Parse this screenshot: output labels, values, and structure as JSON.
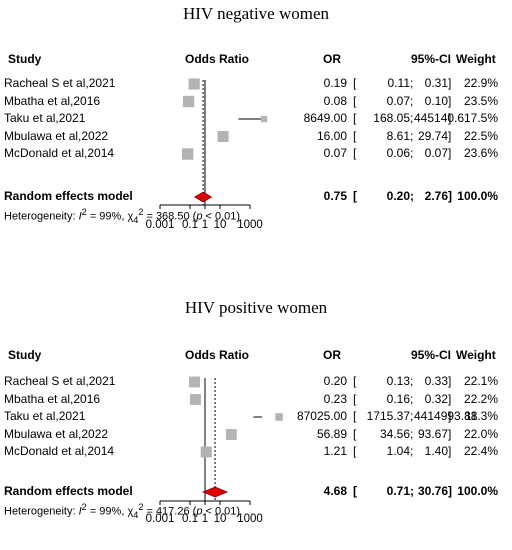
{
  "chart_data": [
    {
      "type": "forest",
      "title": "HIV negative women",
      "headers": {
        "study": "Study",
        "plot": "Odds Ratio",
        "or": "OR",
        "ci": "95%-CI",
        "weight": "Weight"
      },
      "studies": [
        {
          "name": "Racheal S et al,2021",
          "or_text": "0.19",
          "ci_low_text": "0.11",
          "ci_high_text": "0.31",
          "weight_text": "22.9%",
          "or": 0.19,
          "ci": [
            0.11,
            0.31
          ],
          "weight": 22.9
        },
        {
          "name": "Mbatha et al,2016",
          "or_text": "0.08",
          "ci_low_text": "0.07",
          "ci_high_text": "0.10",
          "weight_text": "23.5%",
          "or": 0.08,
          "ci": [
            0.07,
            0.1
          ],
          "weight": 23.5
        },
        {
          "name": "Taku et al,2021",
          "or_text": "8649.00",
          "ci_low_text": "168.05",
          "ci_high_text": "445140.61",
          "weight_text": "7.5%",
          "or": 8649.0,
          "ci": [
            168.05,
            445140.61
          ],
          "weight": 7.5
        },
        {
          "name": "Mbulawa et al,2022",
          "or_text": "16.00",
          "ci_low_text": "8.61",
          "ci_high_text": "29.74",
          "weight_text": "22.5%",
          "or": 16.0,
          "ci": [
            8.61,
            29.74
          ],
          "weight": 22.5
        },
        {
          "name": "McDonald et al,2014",
          "or_text": "0.07",
          "ci_low_text": "0.06",
          "ci_high_text": "0.07",
          "weight_text": "23.6%",
          "or": 0.07,
          "ci": [
            0.06,
            0.07
          ],
          "weight": 23.6
        }
      ],
      "summary": {
        "name": "Random effects model",
        "or_text": "0.75",
        "ci_low_text": "0.20",
        "ci_high_text": "2.76",
        "weight_text": "100.0%",
        "or": 0.75,
        "ci": [
          0.2,
          2.76
        ]
      },
      "heterogeneity": {
        "prefix": "Heterogeneity: ",
        "i2": "I",
        "i2_sup": "2",
        "i2_value": " = 99%, ",
        "chi": "χ",
        "chi_sup": "2",
        "chi_sub": "4",
        "chi_value": " = 368.50 (",
        "p": "p",
        "p_value": " < 0.01)"
      },
      "axis": {
        "scale": "log",
        "ticks": [
          0.001,
          0.1,
          1,
          10,
          1000
        ],
        "tick_labels": [
          "0.001",
          "0.1",
          "1",
          "10",
          "1000"
        ]
      }
    },
    {
      "type": "forest",
      "title": "HIV positive women",
      "headers": {
        "study": "Study",
        "plot": "Odds Ratio",
        "or": "OR",
        "ci": "95%-CI",
        "weight": "Weight"
      },
      "studies": [
        {
          "name": "Racheal S et al,2021",
          "or_text": "0.20",
          "ci_low_text": "0.13",
          "ci_high_text": "0.33",
          "weight_text": "22.1%",
          "or": 0.2,
          "ci": [
            0.13,
            0.33
          ],
          "weight": 22.1
        },
        {
          "name": "Mbatha et al,2016",
          "or_text": "0.23",
          "ci_low_text": "0.16",
          "ci_high_text": "0.32",
          "weight_text": "22.2%",
          "or": 0.23,
          "ci": [
            0.16,
            0.32
          ],
          "weight": 22.2
        },
        {
          "name": "Taku et al,2021",
          "or_text": "87025.00",
          "ci_low_text": "1715.37",
          "ci_high_text": "4414993.88",
          "weight_text": "11.3%",
          "or": 87025.0,
          "ci": [
            1715.37,
            4414993.88
          ],
          "weight": 11.3
        },
        {
          "name": "Mbulawa et al,2022",
          "or_text": "56.89",
          "ci_low_text": "34.56",
          "ci_high_text": "93.67",
          "weight_text": "22.0%",
          "or": 56.89,
          "ci": [
            34.56,
            93.67
          ],
          "weight": 22.0
        },
        {
          "name": "McDonald et al,2014",
          "or_text": "1.21",
          "ci_low_text": "1.04",
          "ci_high_text": "1.40",
          "weight_text": "22.4%",
          "or": 1.21,
          "ci": [
            1.04,
            1.4
          ],
          "weight": 22.4
        }
      ],
      "summary": {
        "name": "Random effects model",
        "or_text": "4.68",
        "ci_low_text": "0.71",
        "ci_high_text": "30.76",
        "weight_text": "100.0%",
        "or": 4.68,
        "ci": [
          0.71,
          30.76
        ]
      },
      "heterogeneity": {
        "prefix": "Heterogeneity: ",
        "i2": "I",
        "i2_sup": "2",
        "i2_value": " = 99%, ",
        "chi": "χ",
        "chi_sup": "2",
        "chi_sub": "4",
        "chi_value": " = 417.26 (",
        "p": "p",
        "p_value": " < 0.01)"
      },
      "axis": {
        "scale": "log",
        "ticks": [
          0.001,
          0.1,
          1,
          10,
          1000
        ],
        "tick_labels": [
          "0.001",
          "0.1",
          "1",
          "10",
          "1000"
        ]
      }
    }
  ],
  "colors": {
    "box": "#b3b3b3",
    "diamond": "#e00000",
    "line": "#000000"
  }
}
